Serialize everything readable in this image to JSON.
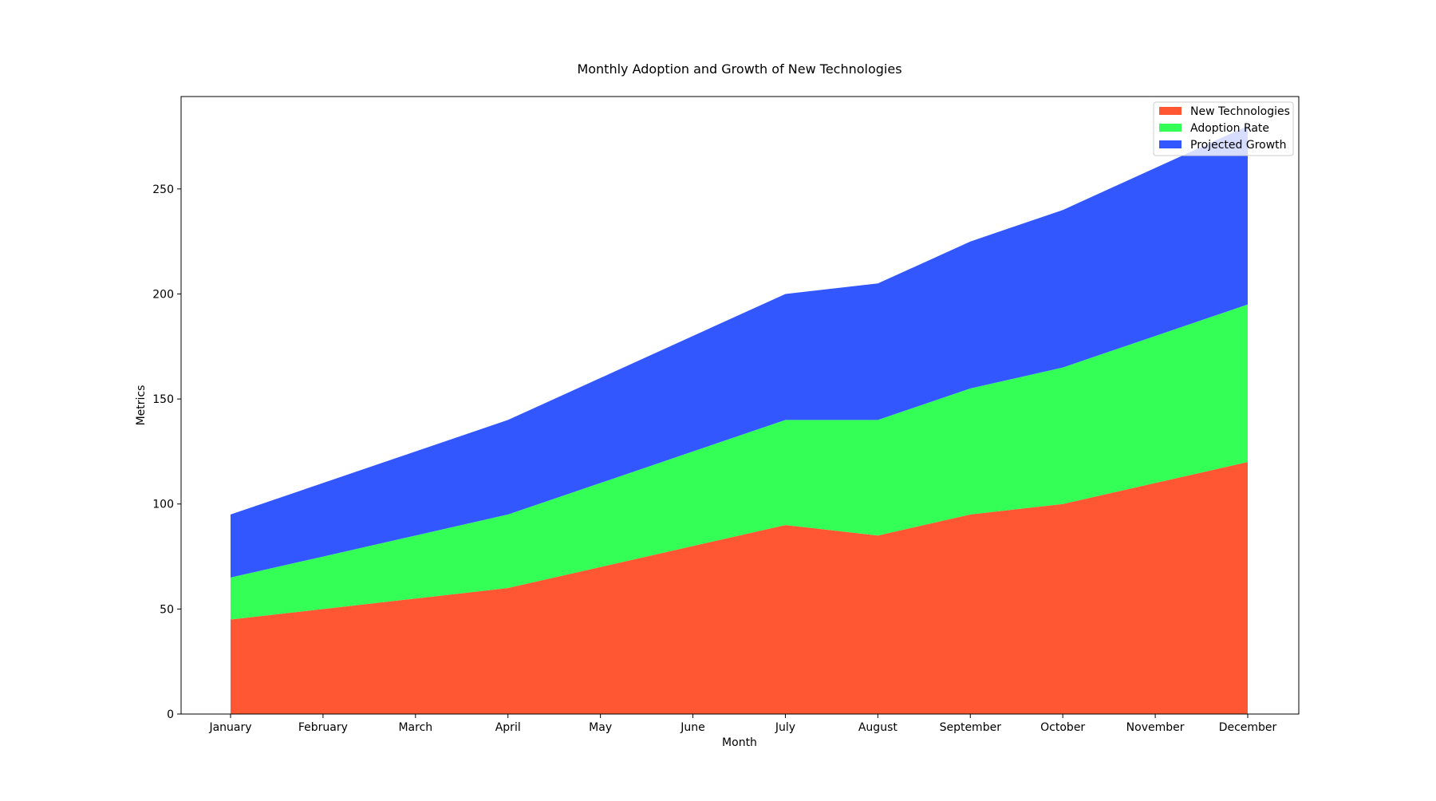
{
  "chart_data": {
    "type": "area",
    "stacked": true,
    "title": "Monthly Adoption and Growth of New Technologies",
    "xlabel": "Month",
    "ylabel": "Metrics",
    "categories": [
      "January",
      "February",
      "March",
      "April",
      "May",
      "June",
      "July",
      "August",
      "September",
      "October",
      "November",
      "December"
    ],
    "series": [
      {
        "name": "New Technologies",
        "color": "#ff5733",
        "values": [
          45,
          50,
          55,
          60,
          70,
          80,
          90,
          85,
          95,
          100,
          110,
          120
        ]
      },
      {
        "name": "Adoption Rate",
        "color": "#33ff57",
        "values": [
          20,
          25,
          30,
          35,
          40,
          45,
          50,
          55,
          60,
          65,
          70,
          75
        ]
      },
      {
        "name": "Projected Growth",
        "color": "#3357ff",
        "values": [
          30,
          35,
          40,
          45,
          50,
          55,
          60,
          65,
          70,
          75,
          80,
          85
        ]
      }
    ],
    "ylim": [
      0,
      294
    ],
    "yticks": [
      0,
      50,
      100,
      150,
      200,
      250
    ],
    "grid": false,
    "legend": "top-right"
  }
}
